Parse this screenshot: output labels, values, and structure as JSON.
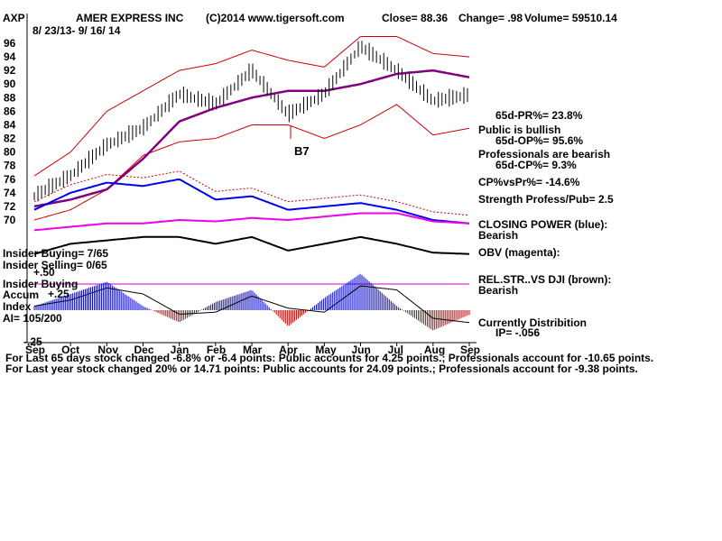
{
  "header": {
    "ticker": "AXP",
    "company": "AMER EXPRESS INC",
    "copyright": "(C)2014 www.tigersoft.com",
    "close_text": "Close=  88.36",
    "change_text": "Change= .98",
    "volume_text": "Volume= 59510.14",
    "date_range": "8/ 23/13- 9/ 16/ 14"
  },
  "colors": {
    "price_bars": "#000000",
    "bands": "#cc0000",
    "moving_average": "#800080",
    "closing_power": "#0000ee",
    "obv": "#ee00ee",
    "relative_strength": "#000000",
    "accum_positive": "#0000cc",
    "accum_negative": "#cc0000",
    "baseline": "#cc00cc"
  },
  "annotations": {
    "signal": "B7",
    "pr": "65d-PR%= 23.8%",
    "public_bullish": "Public is bullish",
    "op": "65d-OP%= 95.6%",
    "professionals_bearish": "Professionals are bearish",
    "cp": "65d-CP%= 9.3%",
    "cp_vs_pr": "CP%vsPr%= -14.6%",
    "strength": "Strength Profess/Pub= 2.5",
    "closing_power": "CLOSING POWER (blue):",
    "closing_power_state": "Bearish",
    "obv": "OBV (magenta):",
    "rel_str": "REL.STR..VS DJI (brown):",
    "rel_str_state": "Bearish",
    "distribution": "Currently Distribition",
    "ip": "IP= -.056",
    "insider_buying_top": "Insider Buying= 7/65",
    "insider_selling": "Insider Selling= 0/65",
    "plus50": "+.50",
    "insider_buying_label": "Insider Buying",
    "accum_label": "Accum",
    "plus25": "+.25",
    "index_label": "Index",
    "ai": "AI= 105/200",
    "minus25": "-.25"
  },
  "footer": {
    "line1": "For Last 65 days stock changed -6.8% or -6.4 points:  Public accounts for  4.25 points.;  Professionals account for -10.65 points.",
    "line2": "For Last year stock changed  20% or  14.71 points:  Public accounts for  24.09 points.;  Professionals account for -9.38 points."
  },
  "chart_data": {
    "type": "line",
    "title": "AMER EXPRESS INC",
    "x_ticks": [
      "Sep",
      "Oct",
      "Nov",
      "Dec",
      "Jan",
      "Feb",
      "Mar",
      "Apr",
      "May",
      "Jun",
      "Jul",
      "Aug",
      "Sep"
    ],
    "y_ticks": [
      70,
      72,
      74,
      76,
      78,
      80,
      82,
      84,
      86,
      88,
      90,
      92,
      94,
      96
    ],
    "ylim": [
      69,
      97
    ],
    "grid": false,
    "series": [
      {
        "name": "Price",
        "x": [
          "Sep",
          "Oct",
          "Nov",
          "Dec",
          "Jan",
          "Feb",
          "Mar",
          "Apr",
          "May",
          "Jun",
          "Jul",
          "Aug",
          "Sep"
        ],
        "values": [
          73.5,
          76.5,
          81,
          83.5,
          88.5,
          87,
          92,
          85.5,
          88.5,
          95.5,
          92,
          87.5,
          88.36
        ]
      },
      {
        "name": "MA",
        "x": [
          "Sep",
          "Oct",
          "Nov",
          "Dec",
          "Jan",
          "Feb",
          "Mar",
          "Apr",
          "May",
          "Jun",
          "Jul",
          "Aug",
          "Sep"
        ],
        "values": [
          72,
          73,
          74.5,
          79,
          84.5,
          86.5,
          88,
          89,
          89,
          90,
          91.5,
          92,
          91
        ]
      },
      {
        "name": "Upper Band",
        "x": [
          "Sep",
          "Oct",
          "Nov",
          "Dec",
          "Jan",
          "Feb",
          "Mar",
          "Apr",
          "May",
          "Jun",
          "Jul",
          "Aug",
          "Sep"
        ],
        "values": [
          76.5,
          80,
          86,
          89,
          92,
          93,
          95,
          93.5,
          92.5,
          97,
          97,
          94.5,
          94
        ]
      },
      {
        "name": "Lower Band",
        "x": [
          "Sep",
          "Oct",
          "Nov",
          "Dec",
          "Jan",
          "Feb",
          "Mar",
          "Apr",
          "May",
          "Jun",
          "Jul",
          "Aug",
          "Sep"
        ],
        "values": [
          70,
          71.5,
          74.5,
          79.5,
          81.5,
          82,
          84,
          84,
          82,
          84,
          87,
          82.5,
          83.5
        ]
      },
      {
        "name": "CLOSING POWER (blue)",
        "x": [
          "Sep",
          "Oct",
          "Nov",
          "Dec",
          "Jan",
          "Feb",
          "Mar",
          "Apr",
          "May",
          "Jun",
          "Jul",
          "Aug",
          "Sep"
        ],
        "values": [
          71.5,
          74,
          75.5,
          75,
          76,
          73,
          73.5,
          71.5,
          72,
          72.5,
          71.5,
          70,
          69.5
        ]
      },
      {
        "name": "OBV (magenta)",
        "x": [
          "Sep",
          "Oct",
          "Nov",
          "Dec",
          "Jan",
          "Feb",
          "Mar",
          "Apr",
          "May",
          "Jun",
          "Jul",
          "Aug",
          "Sep"
        ],
        "values": [
          68.5,
          69,
          69.5,
          69.5,
          70,
          69.8,
          70.3,
          70,
          70.5,
          71,
          71,
          69.8,
          69.5
        ]
      },
      {
        "name": "REL.STR..VS DJI (brown)",
        "x": [
          "Sep",
          "Oct",
          "Nov",
          "Dec",
          "Jan",
          "Feb",
          "Mar",
          "Apr",
          "May",
          "Jun",
          "Jul",
          "Aug",
          "Sep"
        ],
        "values": [
          65,
          66.5,
          67,
          67.5,
          67.5,
          66.5,
          67.5,
          65.5,
          66.5,
          67.5,
          66.5,
          65.2,
          65
        ]
      },
      {
        "name": "Accum Index",
        "x": [
          "Sep",
          "Oct",
          "Nov",
          "Dec",
          "Jan",
          "Feb",
          "Mar",
          "Apr",
          "May",
          "Jun",
          "Jul",
          "Aug",
          "Sep"
        ],
        "values": [
          0.05,
          0.2,
          0.35,
          0.05,
          -0.15,
          0.1,
          0.25,
          -0.2,
          0.15,
          0.45,
          0.05,
          -0.25,
          -0.056
        ]
      }
    ]
  }
}
